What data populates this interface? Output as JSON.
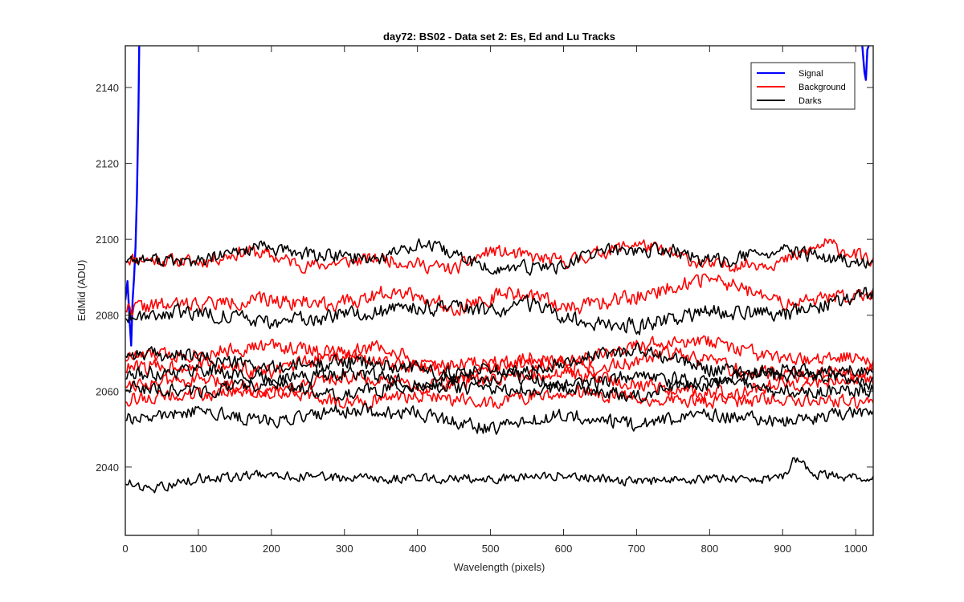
{
  "chart_data": {
    "type": "line",
    "title": "day72: BS02 - Data set 2: Es, Ed and Lu Tracks",
    "xlabel": "Wavelength (pixels)",
    "ylabel": "EdMid (ADU)",
    "xlim": [
      0,
      1024
    ],
    "ylim": [
      2022,
      2151
    ],
    "x_ticks": [
      0,
      100,
      200,
      300,
      400,
      500,
      600,
      700,
      800,
      900,
      1000
    ],
    "y_ticks": [
      2040,
      2060,
      2080,
      2100,
      2120,
      2140
    ],
    "grid": false,
    "legend": {
      "position": "top-right",
      "entries": [
        {
          "label": "Signal",
          "color": "#0000ff"
        },
        {
          "label": "Background",
          "color": "#ff0000"
        },
        {
          "label": "Darks",
          "color": "#000000"
        }
      ]
    },
    "series": [
      {
        "name": "Signal",
        "color": "#0000ff",
        "points": [
          [
            0,
            2084
          ],
          [
            3,
            2089
          ],
          [
            6,
            2078
          ],
          [
            8,
            2072
          ],
          [
            10,
            2084
          ],
          [
            12,
            2090
          ],
          [
            14,
            2098
          ],
          [
            16,
            2112
          ],
          [
            18,
            2135
          ],
          [
            19,
            2151
          ]
        ]
      },
      {
        "name": "Signal",
        "color": "#0000ff",
        "points": [
          [
            1009,
            2151
          ],
          [
            1012,
            2144
          ],
          [
            1014,
            2142
          ],
          [
            1016,
            2150
          ],
          [
            1018,
            2151
          ]
        ]
      },
      {
        "name": "Background",
        "color": "#ff0000",
        "trend": [
          [
            0,
            2095
          ],
          [
            100,
            2094
          ],
          [
            170,
            2097
          ],
          [
            250,
            2093
          ],
          [
            350,
            2095
          ],
          [
            450,
            2092
          ],
          [
            500,
            2097
          ],
          [
            600,
            2094
          ],
          [
            700,
            2099
          ],
          [
            800,
            2093
          ],
          [
            900,
            2094
          ],
          [
            960,
            2099
          ],
          [
            1024,
            2094
          ]
        ],
        "noise": 1.6,
        "seed": 11
      },
      {
        "name": "Background",
        "color": "#ff0000",
        "trend": [
          [
            0,
            2082
          ],
          [
            100,
            2083
          ],
          [
            200,
            2084
          ],
          [
            300,
            2083
          ],
          [
            370,
            2087
          ],
          [
            450,
            2082
          ],
          [
            530,
            2086
          ],
          [
            620,
            2082
          ],
          [
            700,
            2085
          ],
          [
            800,
            2090
          ],
          [
            900,
            2083
          ],
          [
            1024,
            2086
          ]
        ],
        "noise": 1.8,
        "seed": 22
      },
      {
        "name": "Background",
        "color": "#ff0000",
        "trend": [
          [
            0,
            2069
          ],
          [
            100,
            2070
          ],
          [
            200,
            2072
          ],
          [
            300,
            2070
          ],
          [
            400,
            2066
          ],
          [
            500,
            2068
          ],
          [
            600,
            2067
          ],
          [
            700,
            2072
          ],
          [
            800,
            2073
          ],
          [
            900,
            2068
          ],
          [
            1024,
            2069
          ]
        ],
        "noise": 1.7,
        "seed": 33
      },
      {
        "name": "Background",
        "color": "#ff0000",
        "trend": [
          [
            0,
            2066
          ],
          [
            100,
            2067
          ],
          [
            200,
            2065
          ],
          [
            350,
            2072
          ],
          [
            450,
            2063
          ],
          [
            550,
            2069
          ],
          [
            650,
            2066
          ],
          [
            750,
            2070
          ],
          [
            850,
            2065
          ],
          [
            950,
            2064
          ],
          [
            1024,
            2066
          ]
        ],
        "noise": 1.8,
        "seed": 44
      },
      {
        "name": "Background",
        "color": "#ff0000",
        "trend": [
          [
            0,
            2062
          ],
          [
            100,
            2063
          ],
          [
            200,
            2060
          ],
          [
            300,
            2064
          ],
          [
            400,
            2061
          ],
          [
            500,
            2063
          ],
          [
            600,
            2065
          ],
          [
            700,
            2062
          ],
          [
            800,
            2059
          ],
          [
            900,
            2062
          ],
          [
            1024,
            2063
          ]
        ],
        "noise": 1.7,
        "seed": 55
      },
      {
        "name": "Background",
        "color": "#ff0000",
        "trend": [
          [
            0,
            2058
          ],
          [
            100,
            2059
          ],
          [
            200,
            2060
          ],
          [
            300,
            2057
          ],
          [
            400,
            2059
          ],
          [
            500,
            2057
          ],
          [
            600,
            2060
          ],
          [
            700,
            2058
          ],
          [
            800,
            2057
          ],
          [
            900,
            2058
          ],
          [
            1024,
            2057
          ]
        ],
        "noise": 1.6,
        "seed": 66
      },
      {
        "name": "Darks",
        "color": "#000000",
        "trend": [
          [
            0,
            2095
          ],
          [
            100,
            2094
          ],
          [
            180,
            2098
          ],
          [
            250,
            2096
          ],
          [
            350,
            2095
          ],
          [
            400,
            2099
          ],
          [
            450,
            2096
          ],
          [
            500,
            2092
          ],
          [
            600,
            2093
          ],
          [
            650,
            2097
          ],
          [
            750,
            2097
          ],
          [
            800,
            2094
          ],
          [
            900,
            2097
          ],
          [
            1024,
            2093
          ]
        ],
        "noise": 1.6,
        "seed": 77
      },
      {
        "name": "Darks",
        "color": "#000000",
        "trend": [
          [
            0,
            2080
          ],
          [
            100,
            2081
          ],
          [
            200,
            2078
          ],
          [
            300,
            2080
          ],
          [
            400,
            2082
          ],
          [
            500,
            2081
          ],
          [
            550,
            2083
          ],
          [
            600,
            2079
          ],
          [
            700,
            2077
          ],
          [
            800,
            2081
          ],
          [
            900,
            2080
          ],
          [
            1024,
            2086
          ]
        ],
        "noise": 1.8,
        "seed": 88
      },
      {
        "name": "Darks",
        "color": "#000000",
        "trend": [
          [
            0,
            2070
          ],
          [
            100,
            2069
          ],
          [
            200,
            2066
          ],
          [
            300,
            2068
          ],
          [
            400,
            2066
          ],
          [
            500,
            2063
          ],
          [
            600,
            2068
          ],
          [
            700,
            2071
          ],
          [
            800,
            2066
          ],
          [
            900,
            2064
          ],
          [
            1024,
            2066
          ]
        ],
        "noise": 1.7,
        "seed": 99
      },
      {
        "name": "Darks",
        "color": "#000000",
        "trend": [
          [
            0,
            2064
          ],
          [
            100,
            2066
          ],
          [
            200,
            2063
          ],
          [
            300,
            2065
          ],
          [
            400,
            2062
          ],
          [
            500,
            2066
          ],
          [
            600,
            2061
          ],
          [
            700,
            2064
          ],
          [
            800,
            2062
          ],
          [
            900,
            2066
          ],
          [
            1024,
            2062
          ]
        ],
        "noise": 1.7,
        "seed": 111
      },
      {
        "name": "Darks",
        "color": "#000000",
        "trend": [
          [
            0,
            2061
          ],
          [
            100,
            2060
          ],
          [
            200,
            2062
          ],
          [
            300,
            2059
          ],
          [
            400,
            2062
          ],
          [
            500,
            2060
          ],
          [
            600,
            2061
          ],
          [
            700,
            2059
          ],
          [
            800,
            2063
          ],
          [
            900,
            2060
          ],
          [
            1024,
            2060
          ]
        ],
        "noise": 1.6,
        "seed": 122
      },
      {
        "name": "Darks",
        "color": "#000000",
        "trend": [
          [
            0,
            2053
          ],
          [
            100,
            2055
          ],
          [
            200,
            2052
          ],
          [
            300,
            2055
          ],
          [
            400,
            2054
          ],
          [
            500,
            2050
          ],
          [
            600,
            2054
          ],
          [
            700,
            2051
          ],
          [
            800,
            2054
          ],
          [
            900,
            2052
          ],
          [
            1024,
            2055
          ]
        ],
        "noise": 1.6,
        "seed": 133
      },
      {
        "name": "Darks",
        "color": "#000000",
        "trend": [
          [
            0,
            2036
          ],
          [
            30,
            2034
          ],
          [
            100,
            2037
          ],
          [
            200,
            2038
          ],
          [
            300,
            2037
          ],
          [
            400,
            2037
          ],
          [
            500,
            2037
          ],
          [
            600,
            2038
          ],
          [
            700,
            2036
          ],
          [
            800,
            2037
          ],
          [
            900,
            2037
          ],
          [
            915,
            2042
          ],
          [
            950,
            2038
          ],
          [
            1024,
            2037
          ]
        ],
        "noise": 1.1,
        "seed": 144
      }
    ]
  }
}
